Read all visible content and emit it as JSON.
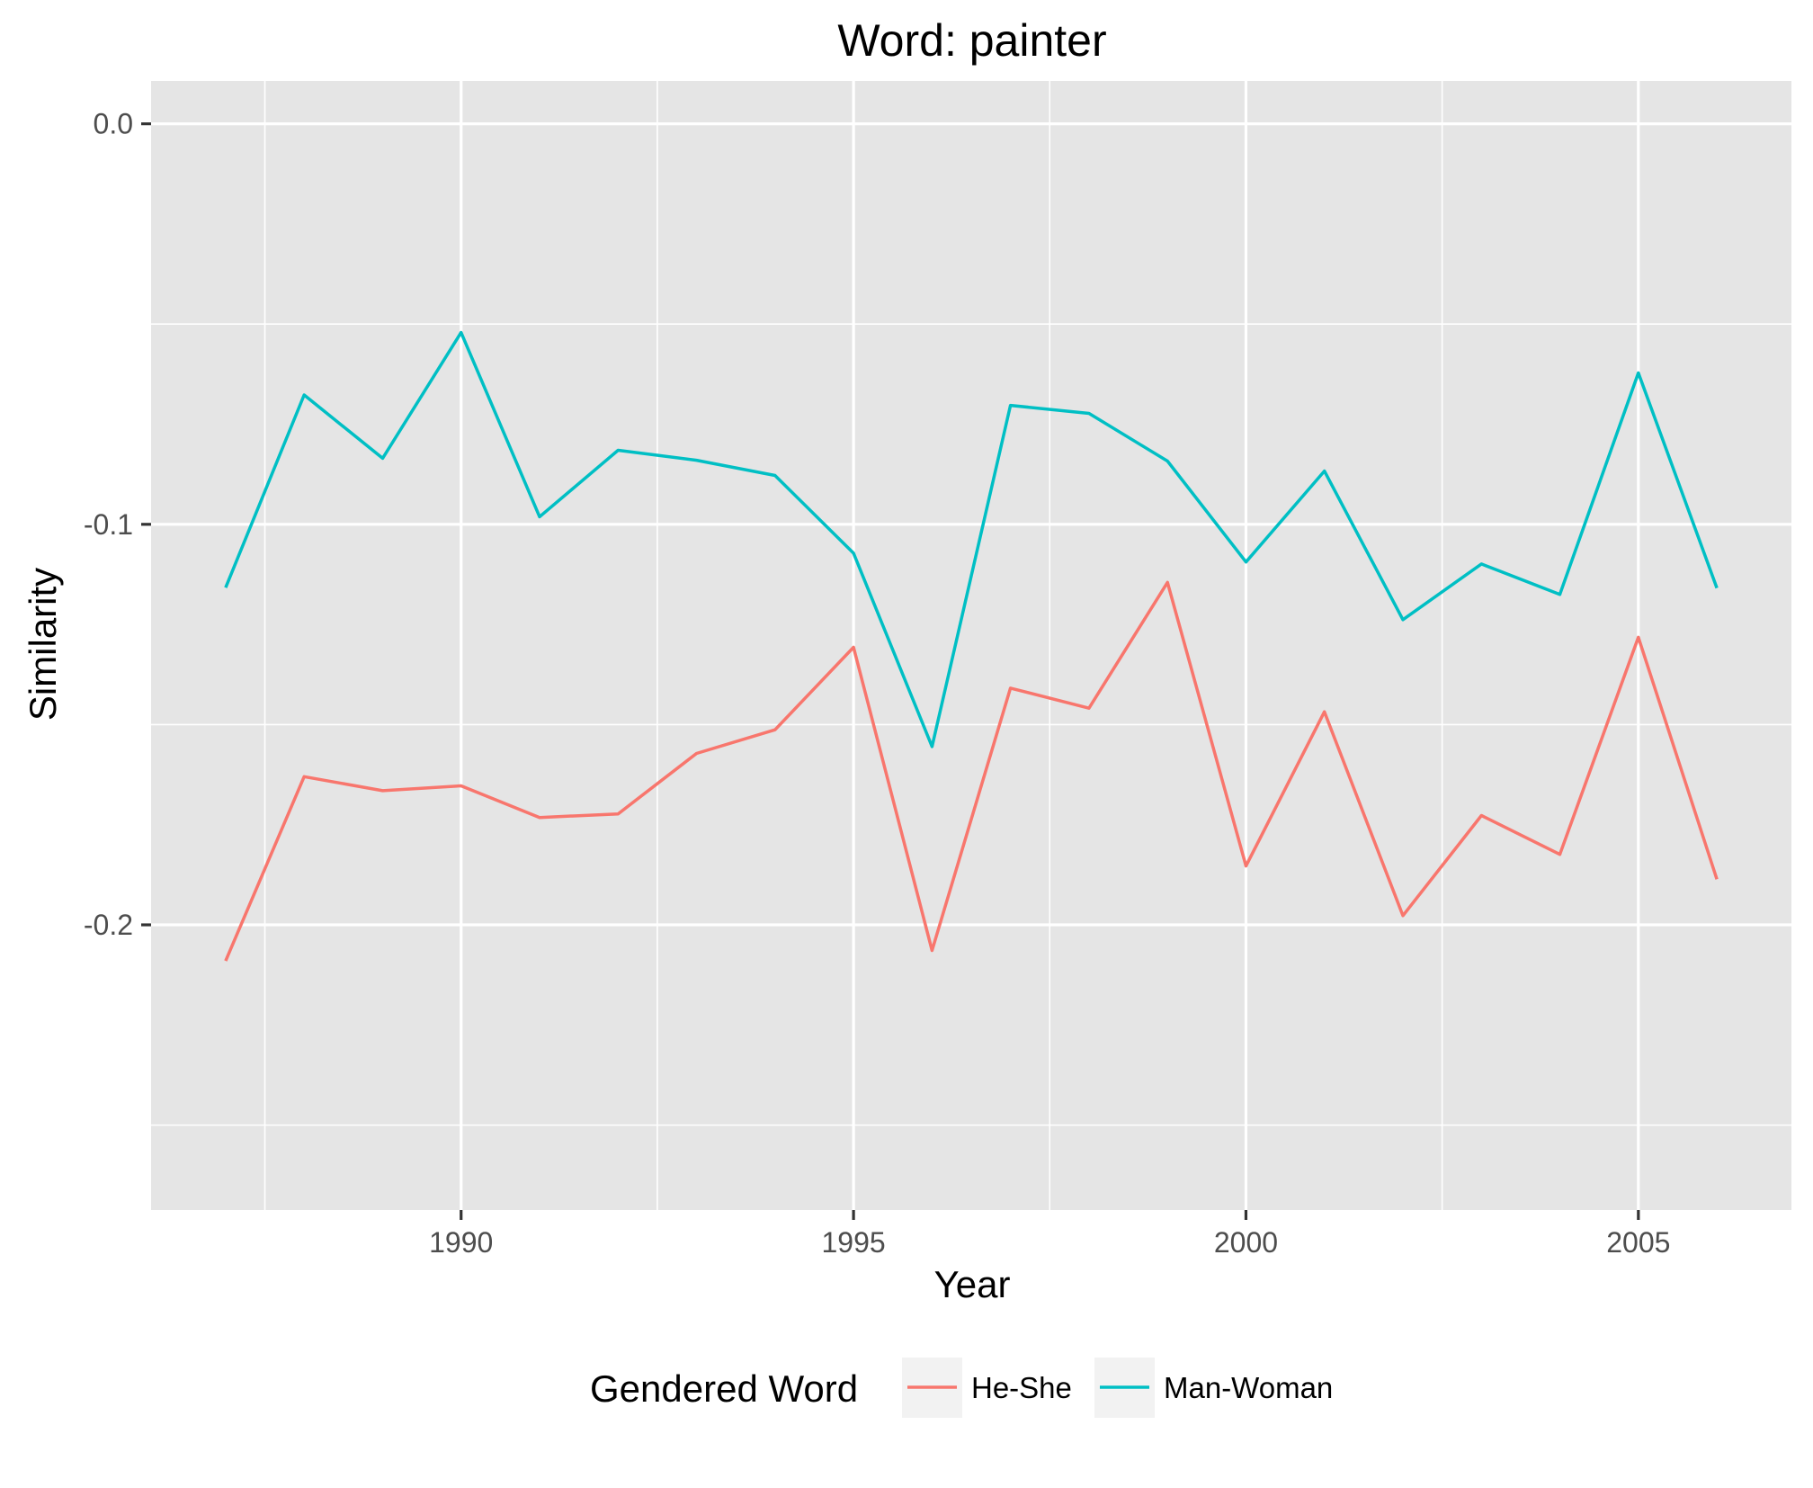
{
  "chart_data": {
    "type": "line",
    "title": "Word: painter",
    "xlabel": "Year",
    "ylabel": "Similarity",
    "x": [
      1987,
      1988,
      1989,
      1990,
      1991,
      1992,
      1993,
      1994,
      1995,
      1996,
      1997,
      1998,
      1999,
      2000,
      2001,
      2002,
      2003,
      2004,
      2005,
      2006
    ],
    "series": [
      {
        "name": "He-She",
        "color": "#F8766D",
        "values": [
          -0.209,
          -0.163,
          -0.1665,
          -0.1653,
          -0.1732,
          -0.1723,
          -0.1572,
          -0.1513,
          -0.1307,
          -0.2064,
          -0.1409,
          -0.1459,
          -0.1145,
          -0.1853,
          -0.1468,
          -0.1977,
          -0.1727,
          -0.1824,
          -0.1282,
          -0.1886
        ]
      },
      {
        "name": "Man-Woman",
        "color": "#00BFC4",
        "values": [
          -0.1158,
          -0.0677,
          -0.0835,
          -0.0521,
          -0.0981,
          -0.0815,
          -0.084,
          -0.0878,
          -0.1072,
          -0.1555,
          -0.0703,
          -0.0723,
          -0.0842,
          -0.1094,
          -0.0867,
          -0.1238,
          -0.1099,
          -0.1175,
          -0.0622,
          -0.1159
        ]
      }
    ],
    "xlim": [
      1986.05,
      2006.95
    ],
    "ylim": [
      -0.2712,
      0.0107
    ],
    "x_ticks": [
      "1990",
      "1995",
      "2000",
      "2005"
    ],
    "y_ticks": [
      "0.0",
      "-0.1",
      "-0.2"
    ],
    "grid": true,
    "legend_position": "bottom",
    "legend_title": "Gendered Word",
    "legend": [
      "He-She",
      "Man-Woman"
    ],
    "panel_background": "#E5E5E5",
    "grid_color": "#FFFFFF"
  }
}
